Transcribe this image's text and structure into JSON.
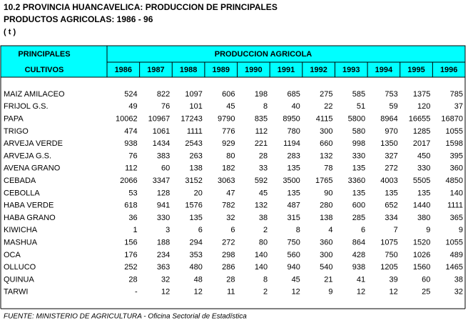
{
  "header": {
    "title": "10.2  PROVINCIA HUANCAVELICA: PRODUCCION DE PRINCIPALES",
    "subtitle": "PRODUCTOS AGRICOLAS: 1986 - 96",
    "unit": "( t )"
  },
  "table": {
    "first_col_header": [
      "PRINCIPALES",
      "CULTIVOS"
    ],
    "group_header": "PRODUCCION AGRICOLA",
    "years": [
      "1986",
      "1987",
      "1988",
      "1989",
      "1990",
      "1991",
      "1992",
      "1993",
      "1994",
      "1995",
      "1996"
    ],
    "rows": [
      [
        "MAIZ AMILACEO",
        524,
        822,
        1097,
        606,
        198,
        685,
        275,
        585,
        753,
        1375,
        785
      ],
      [
        "FRIJOL G.S.",
        49,
        76,
        101,
        45,
        8,
        40,
        22,
        51,
        59,
        120,
        37
      ],
      [
        "PAPA",
        10062,
        10967,
        17243,
        9790,
        835,
        8950,
        4115,
        5800,
        8964,
        16655,
        16870
      ],
      [
        "TRIGO",
        474,
        1061,
        1111,
        776,
        112,
        780,
        300,
        580,
        970,
        1285,
        1055
      ],
      [
        "ARVEJA VERDE",
        938,
        1434,
        2543,
        929,
        221,
        1194,
        660,
        998,
        1350,
        2017,
        1598
      ],
      [
        "ARVEJA G.S.",
        76,
        383,
        263,
        80,
        28,
        283,
        132,
        330,
        327,
        450,
        395
      ],
      [
        "AVENA GRANO",
        112,
        60,
        138,
        182,
        33,
        135,
        78,
        135,
        272,
        330,
        360
      ],
      [
        "CEBADA",
        2066,
        3347,
        3152,
        3063,
        592,
        3500,
        1765,
        3360,
        4003,
        5505,
        4850
      ],
      [
        "CEBOLLA",
        53,
        128,
        20,
        47,
        45,
        135,
        90,
        135,
        135,
        135,
        140
      ],
      [
        "HABA VERDE",
        618,
        941,
        1576,
        782,
        132,
        487,
        280,
        600,
        652,
        1440,
        1111
      ],
      [
        "HABA GRANO",
        36,
        330,
        135,
        32,
        38,
        315,
        138,
        285,
        334,
        380,
        365
      ],
      [
        "KIWICHA",
        1,
        3,
        6,
        6,
        2,
        8,
        4,
        6,
        7,
        9,
        9
      ],
      [
        "MASHUA",
        156,
        188,
        294,
        272,
        80,
        750,
        360,
        864,
        1075,
        1520,
        1055
      ],
      [
        "OCA",
        176,
        234,
        353,
        298,
        140,
        560,
        300,
        428,
        750,
        1026,
        489
      ],
      [
        "OLLUCO",
        252,
        363,
        480,
        286,
        140,
        940,
        540,
        938,
        1205,
        1560,
        1465
      ],
      [
        "QUINUA",
        28,
        32,
        48,
        28,
        8,
        45,
        21,
        41,
        39,
        60,
        38
      ],
      [
        "TARWI",
        "-",
        12,
        12,
        11,
        2,
        12,
        9,
        12,
        12,
        25,
        32
      ]
    ]
  },
  "footer": {
    "source": "FUENTE: MINISTERIO DE AGRICULTURA - Oficina Sectorial de Estadística"
  }
}
